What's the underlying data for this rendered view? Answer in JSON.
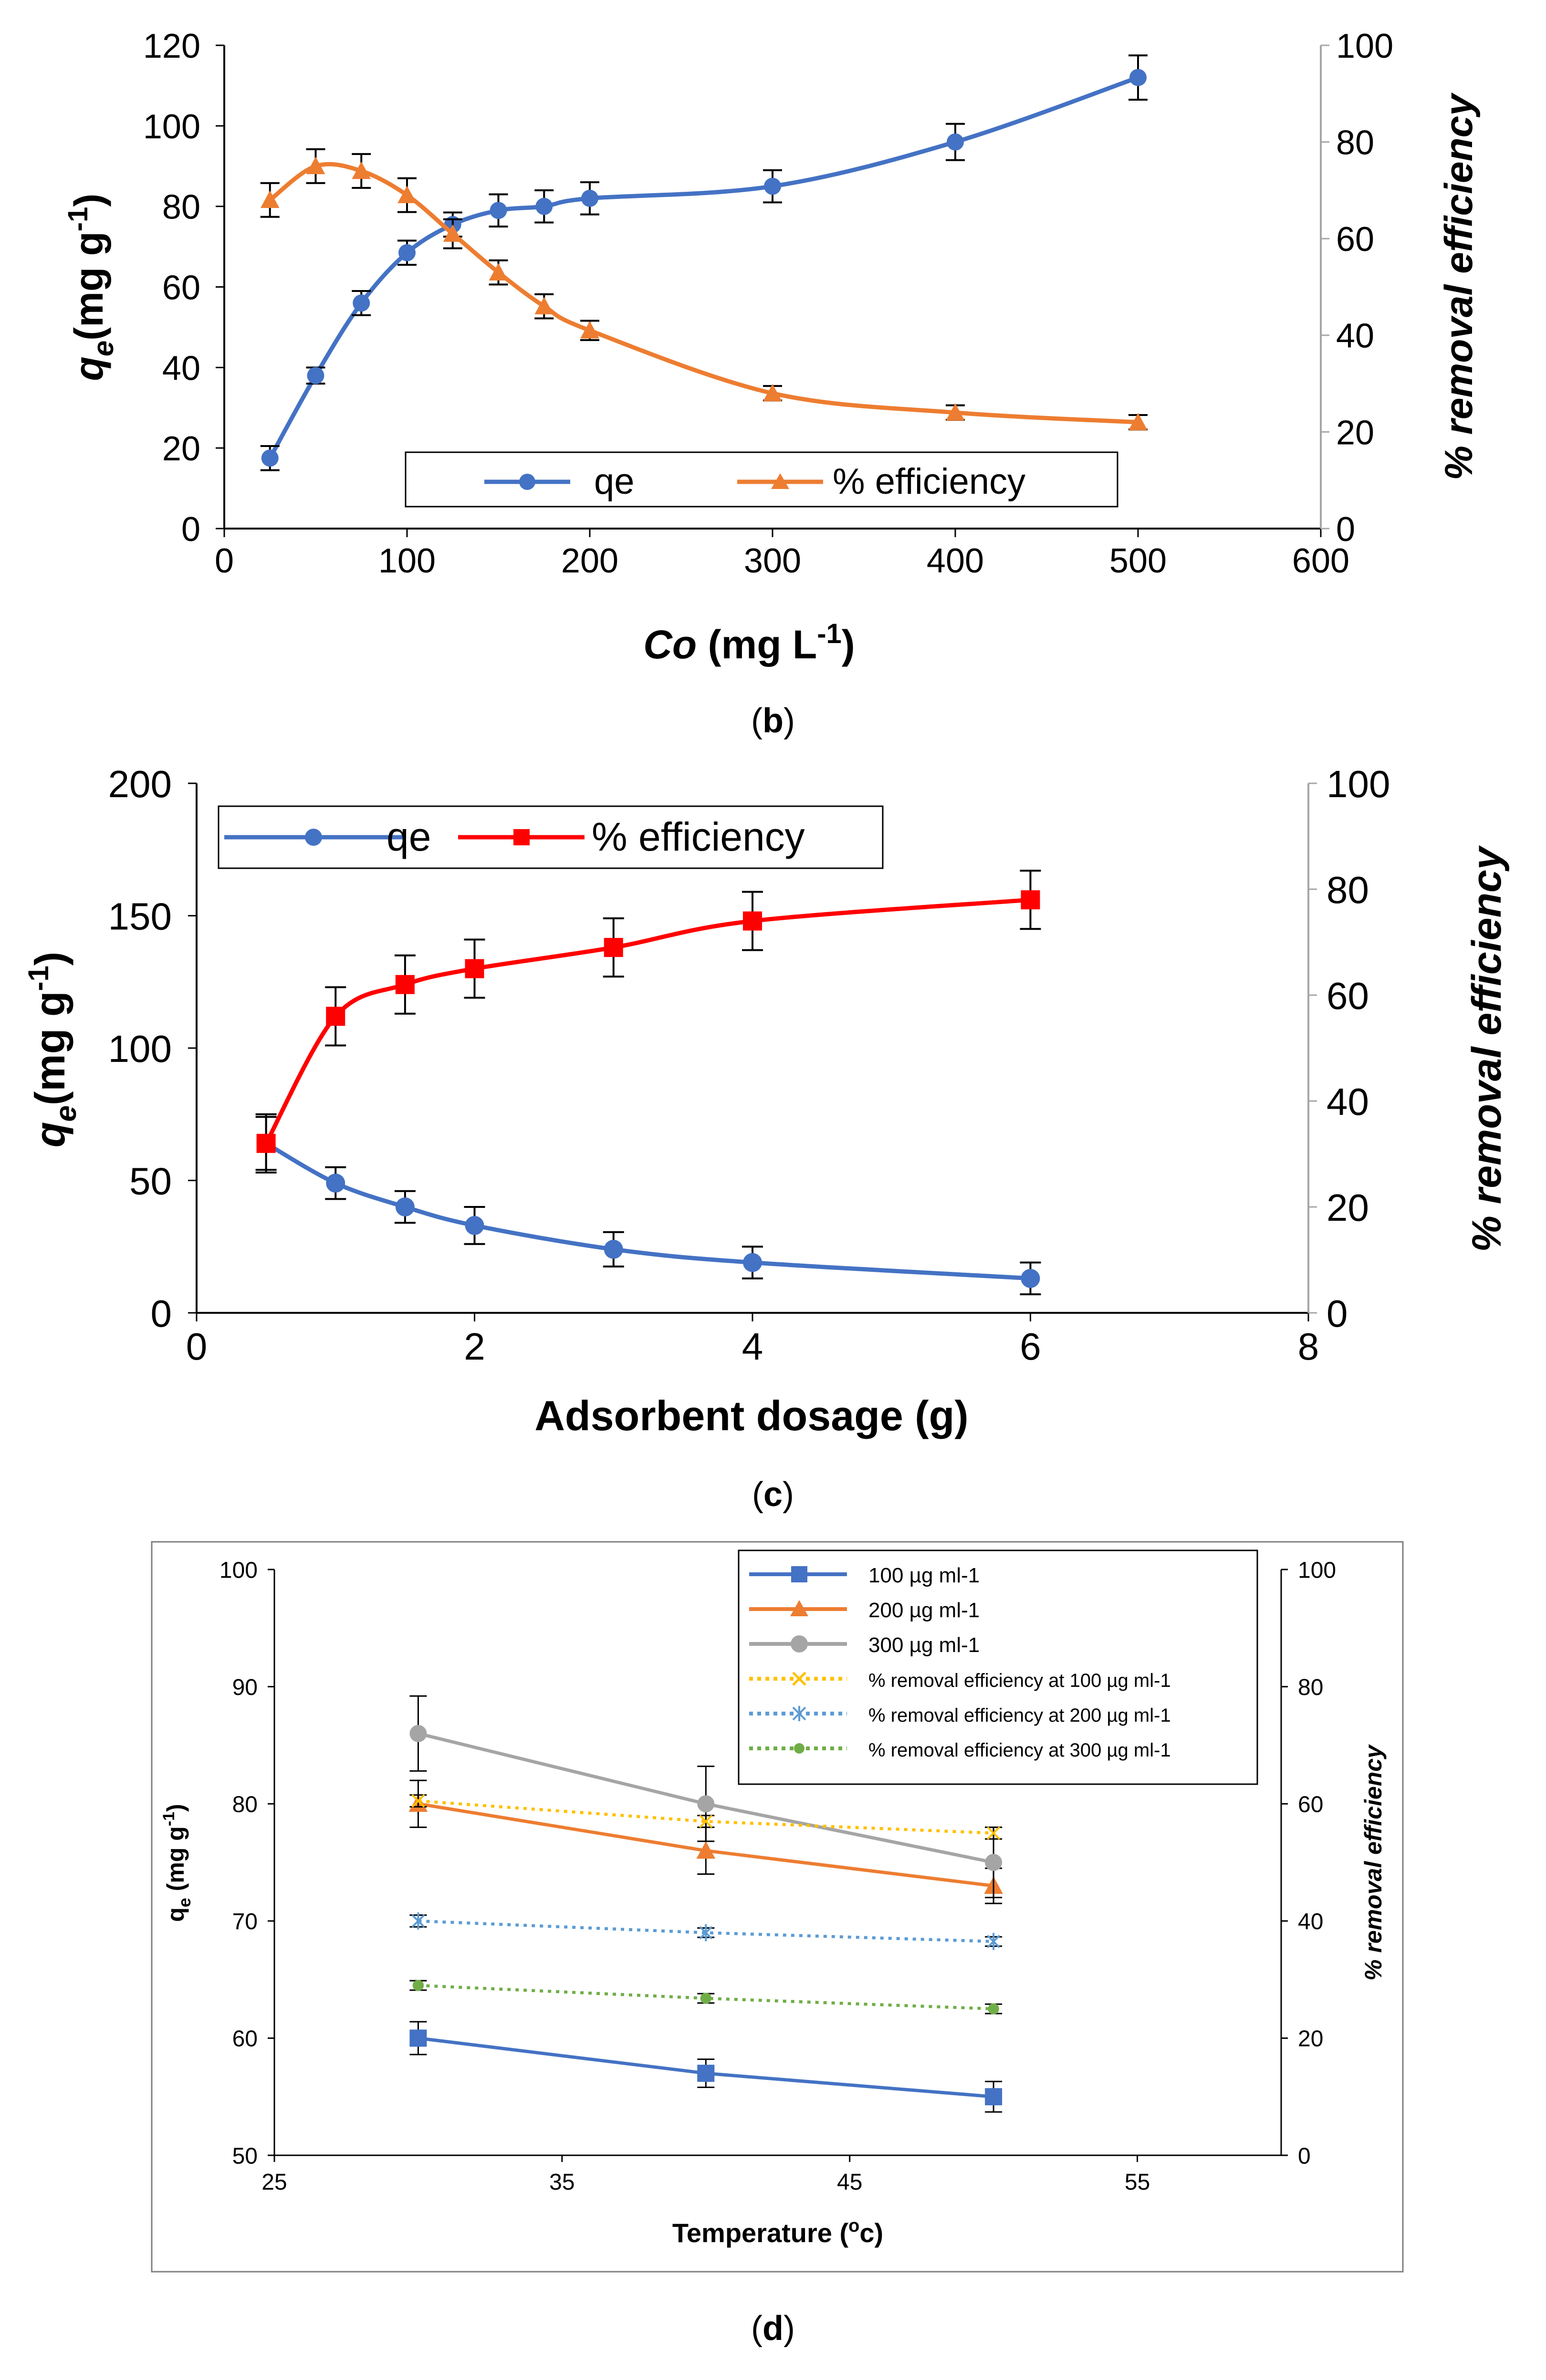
{
  "chart_data": [
    {
      "id": "b",
      "type": "line",
      "caption": "b",
      "xlabel_main": "Co",
      "xlabel_unit": " (mg L",
      "xlabel_exp": "-1",
      "xlabel_close": ")",
      "ylabel_left_q": "q",
      "ylabel_left_sub": "e",
      "ylabel_left_unit": "(mg g",
      "ylabel_left_exp": "-1",
      "ylabel_left_close": ")",
      "ylabel_right": "% removal efficiency",
      "xlim": [
        0,
        600
      ],
      "xticks": [
        0,
        100,
        200,
        300,
        400,
        500,
        600
      ],
      "ylim_left": [
        0,
        120
      ],
      "yticks_left": [
        0,
        20,
        40,
        60,
        80,
        100,
        120
      ],
      "ylim_right": [
        0,
        100
      ],
      "yticks_right": [
        0,
        20,
        40,
        60,
        80,
        100
      ],
      "series": [
        {
          "name": "qe",
          "axis": "left",
          "color": "#4472C4",
          "marker": "circle",
          "x": [
            25,
            50,
            75,
            100,
            125,
            150,
            175,
            200,
            300,
            400,
            500
          ],
          "values": [
            17.5,
            38,
            56,
            68.5,
            75.5,
            79,
            80,
            82,
            85,
            96,
            112
          ],
          "err": [
            3,
            2,
            3,
            3,
            3,
            4,
            4,
            4,
            4,
            4.5,
            5.5
          ]
        },
        {
          "name": "% efficiency",
          "axis": "right",
          "color": "#ED7D31",
          "marker": "triangle",
          "x": [
            25,
            50,
            75,
            100,
            125,
            150,
            175,
            200,
            300,
            400,
            500
          ],
          "values": [
            68,
            75,
            74,
            69,
            61,
            53,
            46,
            41,
            28,
            24,
            22
          ],
          "err": [
            3.5,
            3.5,
            3.5,
            3.5,
            3,
            2.5,
            2.5,
            2,
            1.5,
            1.5,
            1.5
          ]
        }
      ]
    },
    {
      "id": "c",
      "type": "line",
      "caption": "c",
      "xlabel": "Adsorbent dosage (g)",
      "ylabel_left_q": "q",
      "ylabel_left_sub": "e",
      "ylabel_left_unit": "(mg g",
      "ylabel_left_exp": "-1",
      "ylabel_left_close": ")",
      "ylabel_right": "% removal efficiency",
      "xlim": [
        0,
        8
      ],
      "xticks": [
        0,
        2,
        4,
        6,
        8
      ],
      "ylim_left": [
        0,
        200
      ],
      "yticks_left": [
        0,
        50,
        100,
        150,
        200
      ],
      "ylim_right": [
        0,
        100
      ],
      "yticks_right": [
        0,
        20,
        40,
        60,
        80,
        100
      ],
      "series": [
        {
          "name": "qe",
          "axis": "left",
          "color": "#4472C4",
          "marker": "circle",
          "x": [
            0.5,
            1,
            1.5,
            2,
            3,
            4,
            6
          ],
          "values": [
            64,
            49,
            40,
            33,
            24,
            19,
            13
          ],
          "err": [
            11,
            6,
            6,
            7,
            6.5,
            6,
            6
          ]
        },
        {
          "name": "% efficiency",
          "axis": "right",
          "color": "#FF0000",
          "marker": "square",
          "x": [
            0.5,
            1,
            1.5,
            2,
            3,
            4,
            6
          ],
          "values": [
            32,
            56,
            62,
            65,
            69,
            74,
            78
          ],
          "err": [
            5,
            5.5,
            5.5,
            5.5,
            5.5,
            5.5,
            5.5
          ]
        }
      ]
    },
    {
      "id": "d",
      "type": "line",
      "caption": "d",
      "xlabel_main": "Temperature (",
      "xlabel_exp": "o",
      "xlabel_close": "c)",
      "ylabel_left_q": "q",
      "ylabel_left_sub": "e",
      "ylabel_left_unit": " (mg g",
      "ylabel_left_exp": "-1",
      "ylabel_left_close": ")",
      "ylabel_right": "% removal efficiency",
      "xlim": [
        25,
        60
      ],
      "xticks": [
        25,
        35,
        45,
        55
      ],
      "ylim_left": [
        50,
        100
      ],
      "yticks_left": [
        50,
        60,
        70,
        80,
        90,
        100
      ],
      "ylim_right": [
        0,
        100
      ],
      "yticks_right": [
        0,
        20,
        40,
        60,
        80,
        100
      ],
      "series": [
        {
          "name": "100 µg ml-1",
          "axis": "left",
          "color": "#4472C4",
          "marker": "square",
          "dash": false,
          "x": [
            30,
            40,
            50
          ],
          "values": [
            60,
            57,
            55
          ],
          "err": [
            1.4,
            1.2,
            1.3
          ]
        },
        {
          "name": "200 µg ml-1",
          "axis": "left",
          "color": "#ED7D31",
          "marker": "triangle",
          "dash": false,
          "x": [
            30,
            40,
            50
          ],
          "values": [
            80,
            76,
            73
          ],
          "err": [
            2,
            2,
            1.5
          ]
        },
        {
          "name": "300 µg ml-1",
          "axis": "left",
          "color": "#A5A5A5",
          "marker": "circle",
          "dash": false,
          "x": [
            30,
            40,
            50
          ],
          "values": [
            86,
            80,
            75
          ],
          "err": [
            3.2,
            3.2,
            3
          ]
        },
        {
          "name": "% removal efficiency at 100 µg ml-1",
          "axis": "right",
          "color": "#FFC000",
          "marker": "x",
          "dash": true,
          "x": [
            30,
            40,
            50
          ],
          "values": [
            60.5,
            57,
            55
          ],
          "err": [
            1,
            1,
            1
          ]
        },
        {
          "name": "% removal efficiency at 200 µg ml-1",
          "axis": "right",
          "color": "#5B9BD5",
          "marker": "star",
          "dash": true,
          "x": [
            30,
            40,
            50
          ],
          "values": [
            40,
            38,
            36.5
          ],
          "err": [
            1,
            0.8,
            0.8
          ]
        },
        {
          "name": "% removal efficiency at 300 µg ml-1",
          "axis": "right",
          "color": "#70AD47",
          "marker": "dot",
          "dash": true,
          "x": [
            30,
            40,
            50
          ],
          "values": [
            29,
            26.8,
            25
          ],
          "err": [
            0.8,
            0.8,
            0.8
          ]
        }
      ]
    }
  ]
}
